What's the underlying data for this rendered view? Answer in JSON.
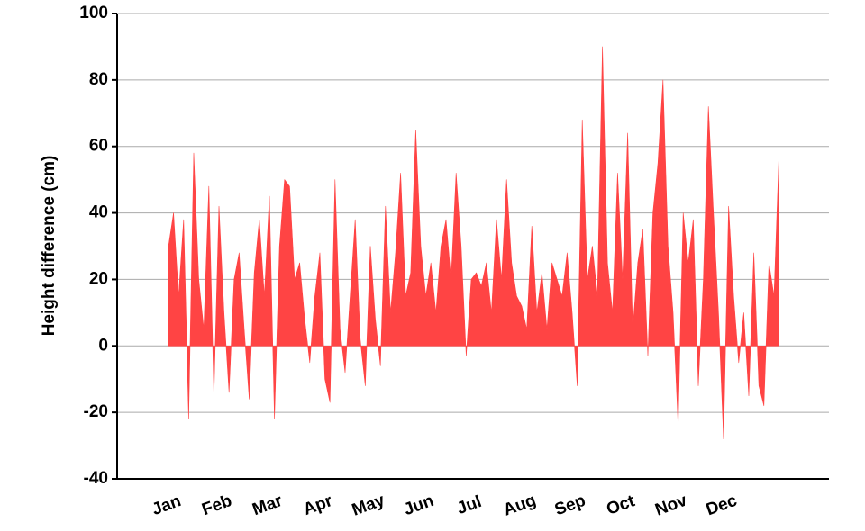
{
  "chart_data": {
    "type": "area",
    "y_label": "Height difference (cm)",
    "color": "#ff4444",
    "ylim": [
      -40,
      100
    ],
    "yticks": [
      -40,
      -20,
      0,
      20,
      40,
      60,
      80,
      100
    ],
    "grid": true,
    "categories": [
      "Jan",
      null,
      null,
      null,
      null,
      null,
      null,
      null,
      null,
      null,
      "Feb",
      null,
      null,
      null,
      null,
      null,
      null,
      null,
      null,
      null,
      "Mar",
      null,
      null,
      null,
      null,
      null,
      null,
      null,
      null,
      null,
      "Apr",
      null,
      null,
      null,
      null,
      null,
      null,
      null,
      null,
      null,
      "May",
      null,
      null,
      null,
      null,
      null,
      null,
      null,
      null,
      null,
      "Jun",
      null,
      null,
      null,
      null,
      null,
      null,
      null,
      null,
      null,
      "Jul",
      null,
      null,
      null,
      null,
      null,
      null,
      null,
      null,
      null,
      "Aug",
      null,
      null,
      null,
      null,
      null,
      null,
      null,
      null,
      null,
      "Sep",
      null,
      null,
      null,
      null,
      null,
      null,
      null,
      null,
      null,
      "Oct",
      null,
      null,
      null,
      null,
      null,
      null,
      null,
      null,
      null,
      "Nov",
      null,
      null,
      null,
      null,
      null,
      null,
      null,
      null,
      null,
      "Dec",
      null,
      null,
      null,
      null,
      null,
      null,
      null,
      null,
      null,
      null,
      null
    ],
    "values": [
      30,
      40,
      15,
      38,
      -22,
      58,
      20,
      5,
      48,
      -15,
      42,
      10,
      -14,
      20,
      28,
      5,
      -16,
      22,
      38,
      15,
      45,
      -22,
      30,
      50,
      48,
      20,
      25,
      8,
      -5,
      15,
      28,
      -10,
      -17,
      50,
      5,
      -8,
      15,
      38,
      2,
      -12,
      30,
      8,
      -6,
      42,
      10,
      28,
      52,
      15,
      22,
      65,
      30,
      15,
      25,
      10,
      30,
      38,
      20,
      52,
      30,
      -3,
      20,
      22,
      18,
      25,
      10,
      38,
      20,
      50,
      25,
      15,
      12,
      5,
      36,
      10,
      22,
      5,
      25,
      20,
      15,
      28,
      10,
      -12,
      68,
      20,
      30,
      15,
      90,
      25,
      10,
      52,
      20,
      64,
      5,
      25,
      35,
      -3,
      40,
      55,
      80,
      30,
      10,
      -24,
      40,
      25,
      38,
      -12,
      20,
      72,
      40,
      10,
      -28,
      42,
      15,
      -5,
      10,
      -15,
      28,
      -12,
      -18,
      25,
      15,
      58
    ]
  }
}
